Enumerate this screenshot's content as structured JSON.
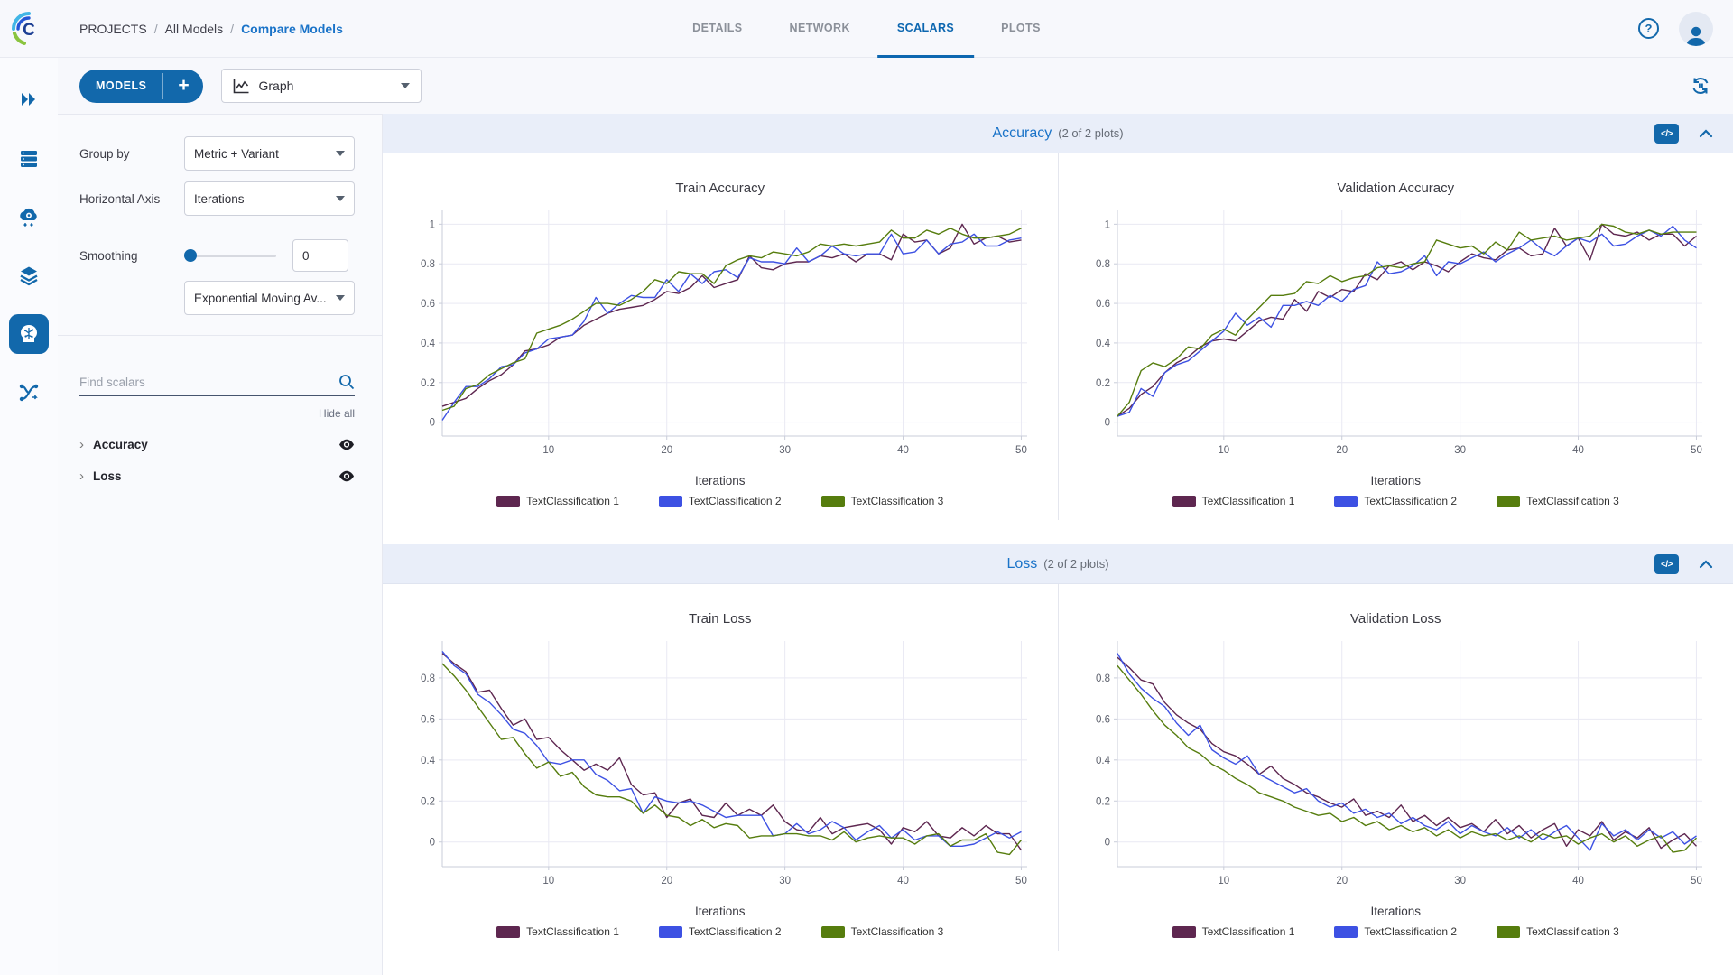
{
  "breadcrumb": {
    "items": [
      "PROJECTS",
      "All Models",
      "Compare Models"
    ],
    "separator": "/"
  },
  "tabs": {
    "items": [
      {
        "label": "DETAILS"
      },
      {
        "label": "NETWORK"
      },
      {
        "label": "SCALARS"
      },
      {
        "label": "PLOTS"
      }
    ],
    "active_index": 2
  },
  "toolbar": {
    "models_label": "MODELS",
    "plus_label": "+",
    "view_selector_value": "Graph"
  },
  "sidebar": {
    "group_by_label": "Group by",
    "group_by_value": "Metric + Variant",
    "horizontal_axis_label": "Horizontal Axis",
    "horizontal_axis_value": "Iterations",
    "smoothing_label": "Smoothing",
    "smoothing_value": "0",
    "smoothing_algorithm": "Exponential Moving Av...",
    "search_placeholder": "Find scalars",
    "hide_all_label": "Hide all",
    "metric_groups": [
      {
        "label": "Accuracy"
      },
      {
        "label": "Loss"
      }
    ]
  },
  "icons": {
    "help_glyph": "?",
    "code_glyph": "</>",
    "plus_glyph": "+"
  },
  "sections": [
    {
      "title": "Accuracy",
      "count_label": "(2 of 2 plots)"
    },
    {
      "title": "Loss",
      "count_label": "(2 of 2 plots)"
    }
  ],
  "colors": {
    "primary": "#1268ab",
    "link": "#1a73c8",
    "series": [
      "#5e2750",
      "#3d51e3",
      "#567d0e"
    ],
    "grid": "#e9e9f3",
    "axis": "#c9cdd9",
    "tick_text": "#5b5f6b"
  },
  "chart_data": [
    {
      "type": "line",
      "title": "Train Accuracy",
      "xlabel": "Iterations",
      "xlim": [
        1,
        50.5
      ],
      "ylim": [
        -0.07,
        1.07
      ],
      "xticks": [
        10,
        20,
        30,
        40,
        50
      ],
      "yticks": [
        0,
        0.2,
        0.4,
        0.6,
        0.8,
        1
      ],
      "grid": true,
      "legend_position": "bottom",
      "series": [
        {
          "name": "TextClassification 1",
          "values": [
            0.08,
            0.1,
            0.12,
            0.17,
            0.21,
            0.24,
            0.29,
            0.36,
            0.37,
            0.39,
            0.43,
            0.44,
            0.49,
            0.52,
            0.55,
            0.57,
            0.58,
            0.59,
            0.62,
            0.66,
            0.65,
            0.68,
            0.74,
            0.68,
            0.7,
            0.72,
            0.84,
            0.78,
            0.77,
            0.8,
            0.81,
            0.81,
            0.84,
            0.83,
            0.85,
            0.81,
            0.85,
            0.85,
            0.82,
            0.95,
            0.91,
            0.92,
            0.85,
            0.88,
            1.0,
            0.9,
            0.93,
            0.94,
            0.91,
            0.92
          ]
        },
        {
          "name": "TextClassification 2",
          "values": [
            0.01,
            0.1,
            0.18,
            0.18,
            0.22,
            0.28,
            0.29,
            0.35,
            0.37,
            0.42,
            0.43,
            0.44,
            0.51,
            0.63,
            0.55,
            0.6,
            0.64,
            0.63,
            0.63,
            0.72,
            0.66,
            0.75,
            0.7,
            0.76,
            0.77,
            0.73,
            0.83,
            0.81,
            0.81,
            0.8,
            0.88,
            0.81,
            0.84,
            0.89,
            0.85,
            0.84,
            0.85,
            0.85,
            0.95,
            0.85,
            0.86,
            0.92,
            0.85,
            0.9,
            0.91,
            0.95,
            0.89,
            0.89,
            0.92,
            0.93
          ]
        },
        {
          "name": "TextClassification 3",
          "values": [
            0.06,
            0.08,
            0.17,
            0.19,
            0.24,
            0.27,
            0.3,
            0.32,
            0.45,
            0.47,
            0.49,
            0.52,
            0.56,
            0.6,
            0.6,
            0.59,
            0.62,
            0.66,
            0.72,
            0.7,
            0.76,
            0.75,
            0.75,
            0.7,
            0.79,
            0.82,
            0.84,
            0.83,
            0.86,
            0.85,
            0.84,
            0.86,
            0.9,
            0.89,
            0.9,
            0.89,
            0.9,
            0.91,
            0.97,
            0.93,
            0.93,
            0.97,
            0.95,
            0.98,
            0.95,
            0.93,
            0.93,
            0.94,
            0.95,
            0.98
          ]
        }
      ]
    },
    {
      "type": "line",
      "title": "Validation Accuracy",
      "xlabel": "Iterations",
      "xlim": [
        1,
        50.5
      ],
      "ylim": [
        -0.07,
        1.07
      ],
      "xticks": [
        10,
        20,
        30,
        40,
        50
      ],
      "yticks": [
        0,
        0.2,
        0.4,
        0.6,
        0.8,
        1
      ],
      "grid": true,
      "legend_position": "bottom",
      "series": [
        {
          "name": "TextClassification 1",
          "values": [
            0.03,
            0.07,
            0.14,
            0.18,
            0.25,
            0.3,
            0.33,
            0.38,
            0.41,
            0.42,
            0.41,
            0.46,
            0.51,
            0.53,
            0.52,
            0.62,
            0.56,
            0.66,
            0.63,
            0.67,
            0.66,
            0.75,
            0.72,
            0.79,
            0.81,
            0.77,
            0.81,
            0.79,
            0.76,
            0.81,
            0.85,
            0.83,
            0.82,
            0.87,
            0.88,
            0.84,
            0.85,
            0.98,
            0.89,
            0.93,
            0.82,
            1.0,
            0.95,
            0.94,
            0.96,
            0.92,
            0.95,
            0.95,
            0.89,
            0.94
          ]
        },
        {
          "name": "TextClassification 2",
          "values": [
            0.03,
            0.05,
            0.17,
            0.13,
            0.25,
            0.29,
            0.31,
            0.36,
            0.41,
            0.46,
            0.55,
            0.49,
            0.53,
            0.48,
            0.59,
            0.59,
            0.61,
            0.59,
            0.64,
            0.61,
            0.67,
            0.69,
            0.81,
            0.75,
            0.76,
            0.79,
            0.84,
            0.74,
            0.81,
            0.8,
            0.83,
            0.86,
            0.81,
            0.85,
            0.88,
            0.92,
            0.87,
            0.84,
            0.89,
            0.93,
            0.91,
            0.95,
            0.89,
            0.9,
            0.94,
            0.97,
            0.94,
            0.99,
            0.92,
            0.88
          ]
        },
        {
          "name": "TextClassification 3",
          "values": [
            0.03,
            0.1,
            0.26,
            0.3,
            0.28,
            0.32,
            0.38,
            0.37,
            0.44,
            0.47,
            0.44,
            0.52,
            0.58,
            0.64,
            0.64,
            0.65,
            0.71,
            0.7,
            0.74,
            0.71,
            0.73,
            0.74,
            0.78,
            0.79,
            0.78,
            0.8,
            0.81,
            0.92,
            0.9,
            0.88,
            0.89,
            0.85,
            0.91,
            0.87,
            0.96,
            0.92,
            0.93,
            0.94,
            0.92,
            0.93,
            0.94,
            1.0,
            0.99,
            0.96,
            0.95,
            0.97,
            0.95,
            0.96,
            0.96,
            0.96
          ]
        }
      ]
    },
    {
      "type": "line",
      "title": "Train Loss",
      "xlabel": "Iterations",
      "xlim": [
        1,
        50.5
      ],
      "ylim": [
        -0.12,
        0.98
      ],
      "xticks": [
        10,
        20,
        30,
        40,
        50
      ],
      "yticks": [
        0,
        0.2,
        0.4,
        0.6,
        0.8
      ],
      "grid": true,
      "legend_position": "bottom",
      "series": [
        {
          "name": "TextClassification 1",
          "values": [
            0.92,
            0.87,
            0.83,
            0.73,
            0.74,
            0.65,
            0.57,
            0.6,
            0.5,
            0.51,
            0.45,
            0.4,
            0.35,
            0.38,
            0.35,
            0.41,
            0.28,
            0.23,
            0.24,
            0.12,
            0.19,
            0.21,
            0.13,
            0.12,
            0.19,
            0.13,
            0.16,
            0.13,
            0.18,
            0.1,
            0.06,
            0.05,
            0.12,
            0.04,
            0.07,
            0.08,
            0.09,
            0.06,
            -0.01,
            0.07,
            0.05,
            0.1,
            0.03,
            0.02,
            0.07,
            0.03,
            0.08,
            0.04,
            0.04,
            -0.04
          ]
        },
        {
          "name": "TextClassification 2",
          "values": [
            0.93,
            0.86,
            0.82,
            0.72,
            0.68,
            0.62,
            0.55,
            0.53,
            0.47,
            0.39,
            0.38,
            0.4,
            0.4,
            0.33,
            0.3,
            0.25,
            0.26,
            0.14,
            0.22,
            0.2,
            0.19,
            0.2,
            0.18,
            0.15,
            0.12,
            0.13,
            0.13,
            0.13,
            0.03,
            0.04,
            0.09,
            0.04,
            0.06,
            0.1,
            0.07,
            0.01,
            0.05,
            0.08,
            0.02,
            0.06,
            0.01,
            0.03,
            0.03,
            -0.02,
            -0.02,
            -0.01,
            0.02,
            0.05,
            0.02,
            0.05
          ]
        },
        {
          "name": "TextClassification 3",
          "values": [
            0.87,
            0.81,
            0.74,
            0.66,
            0.58,
            0.5,
            0.51,
            0.43,
            0.36,
            0.39,
            0.32,
            0.34,
            0.27,
            0.23,
            0.22,
            0.22,
            0.2,
            0.14,
            0.18,
            0.13,
            0.12,
            0.08,
            0.11,
            0.07,
            0.09,
            0.08,
            0.02,
            0.03,
            0.03,
            0.04,
            0.04,
            0.03,
            0.03,
            0.01,
            0.05,
            0.0,
            0.02,
            0.03,
            0.02,
            0.02,
            -0.01,
            0.03,
            0.04,
            -0.02,
            0.01,
            0.01,
            0.04,
            -0.05,
            -0.06,
            0.01
          ]
        }
      ]
    },
    {
      "type": "line",
      "title": "Validation Loss",
      "xlabel": "Iterations",
      "xlim": [
        1,
        50.5
      ],
      "ylim": [
        -0.12,
        0.98
      ],
      "xticks": [
        10,
        20,
        30,
        40,
        50
      ],
      "yticks": [
        0,
        0.2,
        0.4,
        0.6,
        0.8
      ],
      "grid": true,
      "legend_position": "bottom",
      "series": [
        {
          "name": "TextClassification 1",
          "values": [
            0.9,
            0.85,
            0.79,
            0.77,
            0.68,
            0.62,
            0.58,
            0.55,
            0.48,
            0.44,
            0.42,
            0.38,
            0.33,
            0.37,
            0.31,
            0.28,
            0.24,
            0.22,
            0.19,
            0.17,
            0.21,
            0.13,
            0.15,
            0.12,
            0.18,
            0.1,
            0.13,
            0.08,
            0.12,
            0.07,
            0.09,
            0.05,
            0.11,
            0.04,
            0.08,
            0.02,
            0.06,
            0.09,
            -0.02,
            0.06,
            0.03,
            0.1,
            0.01,
            0.05,
            0.02,
            0.07,
            -0.03,
            0.01,
            0.04,
            -0.02
          ]
        },
        {
          "name": "TextClassification 2",
          "values": [
            0.92,
            0.82,
            0.75,
            0.7,
            0.66,
            0.58,
            0.52,
            0.57,
            0.45,
            0.41,
            0.38,
            0.42,
            0.33,
            0.3,
            0.27,
            0.24,
            0.26,
            0.2,
            0.17,
            0.19,
            0.14,
            0.16,
            0.12,
            0.14,
            0.09,
            0.12,
            0.08,
            0.06,
            0.1,
            0.04,
            0.08,
            0.05,
            0.03,
            0.07,
            0.02,
            0.06,
            0.01,
            0.05,
            0.08,
            0.02,
            -0.04,
            0.09,
            0.03,
            0.06,
            0.01,
            0.06,
            0.02,
            0.05,
            -0.01,
            0.03
          ]
        },
        {
          "name": "TextClassification 3",
          "values": [
            0.86,
            0.79,
            0.72,
            0.64,
            0.57,
            0.52,
            0.46,
            0.43,
            0.38,
            0.35,
            0.31,
            0.28,
            0.24,
            0.22,
            0.2,
            0.17,
            0.15,
            0.13,
            0.14,
            0.1,
            0.12,
            0.08,
            0.1,
            0.06,
            0.08,
            0.05,
            0.07,
            0.03,
            0.06,
            0.02,
            0.05,
            0.03,
            0.04,
            0.01,
            0.03,
            0.0,
            0.04,
            0.02,
            0.03,
            -0.01,
            0.02,
            0.04,
            0.0,
            0.03,
            -0.02,
            0.01,
            0.03,
            -0.05,
            -0.04,
            0.02
          ]
        }
      ]
    }
  ]
}
